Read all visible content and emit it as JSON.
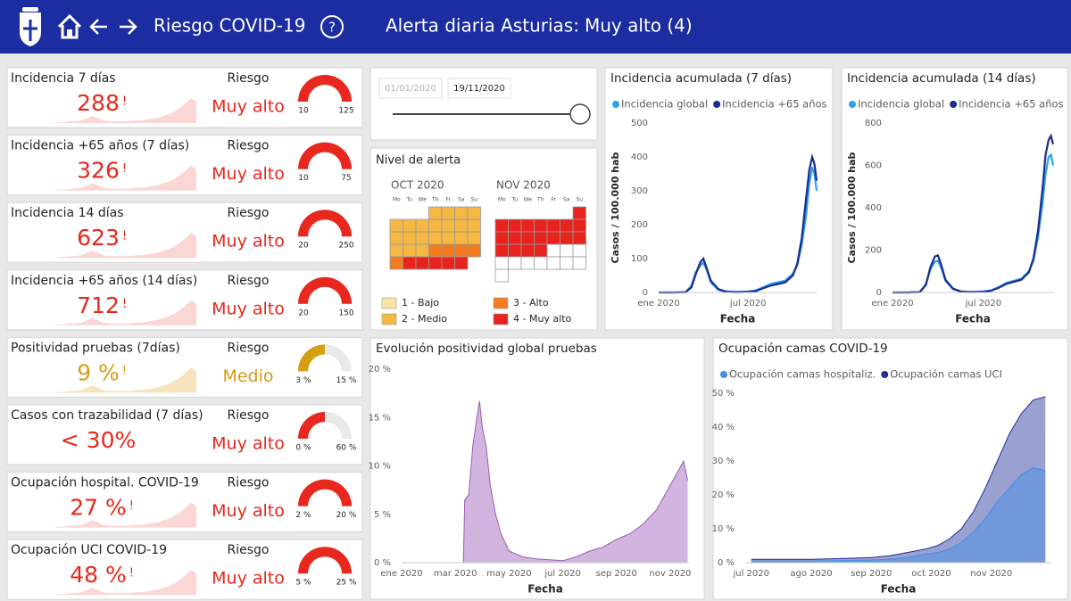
{
  "header": {
    "title": "Riesgo COVID-19",
    "help": "?",
    "alert_label": "Alerta diaria Asturias:",
    "alert_value": "Muy alto (4)"
  },
  "kpis": [
    {
      "title": "Incidencia 7 días",
      "value": 288,
      "flag": "!",
      "risk_label": "Riesgo",
      "risk": "Muy alto",
      "color": "#e8281e",
      "gauge_min": 10,
      "gauge_max": 125
    },
    {
      "title": "Incidencia +65 años (7 días)",
      "value": 326,
      "flag": "!",
      "risk_label": "Riesgo",
      "risk": "Muy alto",
      "color": "#e8281e",
      "gauge_min": 10,
      "gauge_max": 75
    },
    {
      "title": "Incidencia 14 días",
      "value": 623,
      "flag": "!",
      "risk_label": "Riesgo",
      "risk": "Muy alto",
      "color": "#e8281e",
      "gauge_min": 20,
      "gauge_max": 250
    },
    {
      "title": "Incidencia +65 años (14 días)",
      "value": 712,
      "flag": "!",
      "risk_label": "Riesgo",
      "risk": "Muy alto",
      "color": "#e8281e",
      "gauge_min": 20,
      "gauge_max": 150
    },
    {
      "title": "Positividad pruebas (7días)",
      "value": 9,
      "value_label": "9 %",
      "flag": "!",
      "risk_label": "Riesgo",
      "risk": "Medio",
      "color": "#d69e12",
      "gauge_min": {
        "value": 3,
        "label": "3 %"
      },
      "gauge_max": {
        "value": 15,
        "label": "15 %"
      }
    },
    {
      "title": "Casos con trazabilidad (7 días)",
      "value": 30,
      "value_label": "< 30%",
      "risk_label": "Riesgo",
      "risk": "Muy alto",
      "color": "#e8281e",
      "gauge_min": {
        "value": 0,
        "label": "0 %"
      },
      "gauge_max": {
        "value": 60,
        "label": "60 %"
      }
    },
    {
      "title": "Ocupación hospital. COVID-19",
      "value": 27,
      "value_label": "27 %",
      "flag": "!",
      "risk_label": "Riesgo",
      "risk": "Muy alto",
      "color": "#e8281e",
      "gauge_min": {
        "value": 2,
        "label": "2 %"
      },
      "gauge_max": {
        "value": 20,
        "label": "20 %"
      }
    },
    {
      "title": "Ocupación UCI COVID-19",
      "value": 48,
      "value_label": "48 %",
      "flag": "!",
      "risk_label": "Riesgo",
      "risk": "Muy alto",
      "color": "#e8281e",
      "gauge_min": {
        "value": 5,
        "label": "5 %"
      },
      "gauge_max": {
        "value": 25,
        "label": "25 %"
      }
    }
  ],
  "date_filter": {
    "start": "01/01/2020",
    "end": "19/11/2020"
  },
  "alert_calendar": {
    "title": "Nivel de alerta",
    "weekdays": [
      "Mo",
      "Tu",
      "We",
      "Th",
      "Fr",
      "Sa",
      "Su"
    ],
    "months": [
      {
        "name": "OCT 2020",
        "weeks": [
          [
            null,
            null,
            null,
            2,
            2,
            2,
            2
          ],
          [
            2,
            2,
            2,
            2,
            2,
            2,
            2
          ],
          [
            2,
            2,
            2,
            2,
            2,
            2,
            2
          ],
          [
            2,
            2,
            2,
            3,
            3,
            3,
            3
          ],
          [
            3,
            4,
            4,
            4,
            4,
            4
          ]
        ]
      },
      {
        "name": "NOV 2020",
        "weeks": [
          [
            null,
            null,
            null,
            null,
            null,
            null,
            4
          ],
          [
            4,
            4,
            4,
            4,
            4,
            4,
            4
          ],
          [
            4,
            4,
            4,
            4,
            4,
            4,
            4
          ],
          [
            4,
            4,
            4,
            4,
            null,
            null,
            null
          ],
          [
            null,
            null,
            null,
            null,
            null,
            null,
            null
          ],
          [
            null
          ]
        ]
      }
    ],
    "legend": [
      {
        "level": 1,
        "label": "1 - Bajo",
        "color": "#fbe2a4"
      },
      {
        "level": 2,
        "label": "2 - Medio",
        "color": "#f5b843"
      },
      {
        "level": 3,
        "label": "3 - Alto",
        "color": "#f47b20"
      },
      {
        "level": 4,
        "label": "4 - Muy alto",
        "color": "#e8221c"
      }
    ]
  },
  "chart_data": [
    {
      "type": "line",
      "title": "Incidencia acumulada (7 días)",
      "y_label": "Casos / 100.000 hab",
      "x_label": "Fecha",
      "x": [
        1,
        2,
        2.8,
        3.2,
        3.5,
        3.8,
        4.0,
        4.2,
        4.5,
        5,
        5.5,
        6,
        6.5,
        7,
        7.5,
        8,
        8.5,
        9,
        9.5,
        10,
        10.3,
        10.6,
        10.9,
        11.1,
        11.3,
        11.45,
        11.6
      ],
      "series": [
        {
          "name": "Incidencia global",
          "color": "#2b9ff0",
          "values": [
            0,
            0,
            1,
            20,
            60,
            80,
            88,
            70,
            30,
            8,
            3,
            2,
            2,
            3,
            6,
            15,
            25,
            30,
            35,
            55,
            80,
            140,
            230,
            320,
            370,
            350,
            300
          ]
        },
        {
          "name": "Incidencia +65 años",
          "color": "#1a2c8f",
          "values": [
            0,
            0,
            1,
            15,
            55,
            90,
            100,
            75,
            35,
            10,
            3,
            1,
            1,
            2,
            4,
            12,
            20,
            25,
            30,
            50,
            85,
            160,
            280,
            360,
            400,
            380,
            330
          ]
        }
      ],
      "xlim": [
        1,
        11.6
      ],
      "xticks": [
        {
          "value": 1,
          "label": "ene 2020"
        },
        {
          "value": 7,
          "label": "jul 2020"
        }
      ],
      "ylim": [
        0,
        500
      ],
      "yticks": [
        0,
        100,
        200,
        300,
        400,
        500
      ],
      "grid": false
    },
    {
      "type": "line",
      "title": "Incidencia acumulada (14 días)",
      "y_label": "Casos / 100.000 hab",
      "x_label": "Fecha",
      "x": [
        1,
        2,
        2.8,
        3.2,
        3.5,
        3.8,
        4.0,
        4.2,
        4.5,
        5,
        5.5,
        6,
        6.5,
        7,
        7.5,
        8,
        8.5,
        9,
        9.5,
        10,
        10.3,
        10.6,
        10.9,
        11.1,
        11.3,
        11.45,
        11.6
      ],
      "series": [
        {
          "name": "Incidencia global",
          "color": "#2b9ff0",
          "values": [
            0,
            0,
            2,
            40,
            110,
            145,
            150,
            120,
            55,
            15,
            5,
            3,
            3,
            5,
            10,
            25,
            45,
            55,
            65,
            100,
            150,
            260,
            420,
            560,
            640,
            650,
            600
          ]
        },
        {
          "name": "Incidencia +65 años",
          "color": "#1a2c8f",
          "values": [
            0,
            0,
            2,
            35,
            120,
            170,
            175,
            135,
            60,
            18,
            5,
            2,
            2,
            4,
            8,
            22,
            40,
            50,
            60,
            95,
            160,
            290,
            490,
            650,
            720,
            740,
            700
          ]
        }
      ],
      "xlim": [
        1,
        11.6
      ],
      "xticks": [
        {
          "value": 1,
          "label": "ene 2020"
        },
        {
          "value": 7,
          "label": "jul 2020"
        }
      ],
      "ylim": [
        0,
        800
      ],
      "yticks": [
        0,
        200,
        400,
        600,
        800
      ],
      "grid": false
    },
    {
      "type": "area",
      "title": "Evolución positividad global pruebas",
      "x_label": "Fecha",
      "x": [
        3.3,
        3.35,
        3.5,
        3.65,
        3.8,
        3.9,
        4.0,
        4.15,
        4.3,
        4.5,
        4.7,
        5,
        5.5,
        6,
        6.5,
        7,
        7.5,
        8,
        8.5,
        9,
        9.5,
        10,
        10.5,
        11,
        11.3,
        11.5,
        11.65
      ],
      "values": [
        0,
        6.5,
        7,
        12,
        15,
        16.7,
        14,
        12,
        8,
        5,
        3,
        1.2,
        0.6,
        0.4,
        0.3,
        0.2,
        0.6,
        1.2,
        1.6,
        2.4,
        3,
        4,
        5.5,
        8,
        9.5,
        10.5,
        8.5
      ],
      "color": "#9b5bb5",
      "xlim": [
        1,
        11.7
      ],
      "xticks": [
        {
          "value": 1,
          "label": "ene 2020"
        },
        {
          "value": 3,
          "label": "mar 2020"
        },
        {
          "value": 5,
          "label": "may 2020"
        },
        {
          "value": 7,
          "label": "jul 2020"
        },
        {
          "value": 9,
          "label": "sep 2020"
        },
        {
          "value": 11,
          "label": "nov 2020"
        }
      ],
      "ylim": [
        0,
        20
      ],
      "yticks": [
        {
          "value": 0,
          "label": "0 %"
        },
        {
          "value": 5,
          "label": "5 %"
        },
        {
          "value": 10,
          "label": "10 %"
        },
        {
          "value": 15,
          "label": "15 %"
        },
        {
          "value": 20,
          "label": "20 %"
        }
      ],
      "grid": false
    },
    {
      "type": "area",
      "title": "Ocupación camas COVID-19",
      "x_label": "Fecha",
      "x": [
        7,
        7.5,
        8,
        8.5,
        9,
        9.3,
        9.6,
        9.9,
        10.1,
        10.3,
        10.5,
        10.7,
        10.9,
        11.1,
        11.3,
        11.5,
        11.7,
        11.9
      ],
      "series": [
        {
          "name": "Ocupación camas hospitaliz.",
          "color": "#3f8fe6",
          "values": [
            0.5,
            0.5,
            0.5,
            0.6,
            0.8,
            1,
            1.5,
            2.5,
            3,
            4,
            6,
            9,
            13,
            18,
            22,
            26,
            28,
            27
          ]
        },
        {
          "name": "Ocupación camas UCI",
          "color": "#1f2f96",
          "values": [
            1,
            1,
            1,
            1.2,
            1.5,
            2,
            3,
            4,
            5,
            7,
            10,
            15,
            22,
            30,
            38,
            44,
            48,
            49
          ]
        }
      ],
      "xlim": [
        6.9,
        12
      ],
      "xticks": [
        {
          "value": 7,
          "label": "jul 2020"
        },
        {
          "value": 8,
          "label": "ago 2020"
        },
        {
          "value": 9,
          "label": "sep 2020"
        },
        {
          "value": 10,
          "label": "oct 2020"
        },
        {
          "value": 11,
          "label": "nov 2020"
        }
      ],
      "ylim": [
        0,
        50
      ],
      "yticks": [
        {
          "value": 0,
          "label": "0 %"
        },
        {
          "value": 10,
          "label": "10 %"
        },
        {
          "value": 20,
          "label": "20 %"
        },
        {
          "value": 30,
          "label": "30 %"
        },
        {
          "value": 40,
          "label": "40 %"
        },
        {
          "value": 50,
          "label": "50 %"
        }
      ],
      "grid": false
    }
  ]
}
